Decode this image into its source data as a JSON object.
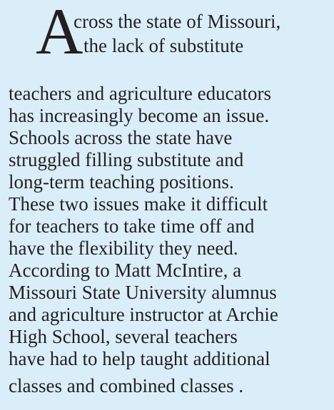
{
  "drop_cap": "A",
  "lines": [
    "cross the state of Missouri,",
    "the lack of substitute",
    "teachers and agriculture educators",
    "has increasingly become an issue.",
    "Schools across the state have",
    "struggled filling substitute and",
    "long-term teaching positions.",
    "These two issues make it difficult",
    "for teachers to take time off and",
    "have the flexibility they need.",
    "According to Matt McIntire, a",
    "Missouri State University alumnus",
    "and agriculture instructor at Archie",
    "High School, several teachers",
    "have had to help taught additional",
    "classes and combined classes ."
  ]
}
